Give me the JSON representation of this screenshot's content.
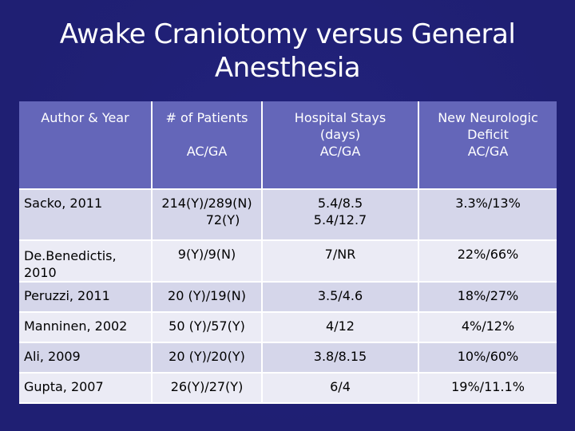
{
  "title_line1": "Awake Craniotomy versus General",
  "title_line2": "Anesthesia",
  "headers": {
    "author": "Author & Year",
    "patients_line1": "# of Patients",
    "patients_line2": "AC/GA",
    "stays_line1": "Hospital Stays",
    "stays_line2": "(days)",
    "stays_line3": "AC/GA",
    "deficit_line1": "New Neurologic",
    "deficit_line2": "Deficit",
    "deficit_line3": "AC/GA"
  },
  "rows": [
    {
      "author": "Sacko, 2011",
      "patients_line1": "214(Y)/289(N)",
      "patients_line2": "72(Y)",
      "stays_line1": "5.4/8.5",
      "stays_line2": "5.4/12.7",
      "deficit": "3.3%/13%"
    },
    {
      "author": "De.Benedictis, 2010",
      "patients": "9(Y)/9(N)",
      "stays": "7/NR",
      "deficit": "22%/66%"
    },
    {
      "author": "Peruzzi, 2011",
      "patients": "20 (Y)/19(N)",
      "stays": "3.5/4.6",
      "deficit": "18%/27%"
    },
    {
      "author": "Manninen, 2002",
      "patients": "50 (Y)/57(Y)",
      "stays": "4/12",
      "deficit": "4%/12%"
    },
    {
      "author": "Ali, 2009",
      "patients": "20 (Y)/20(Y)",
      "stays": "3.8/8.15",
      "deficit": "10%/60%"
    },
    {
      "author": "Gupta, 2007",
      "patients": "26(Y)/27(Y)",
      "stays": "6/4",
      "deficit": "19%/11.1%"
    }
  ]
}
